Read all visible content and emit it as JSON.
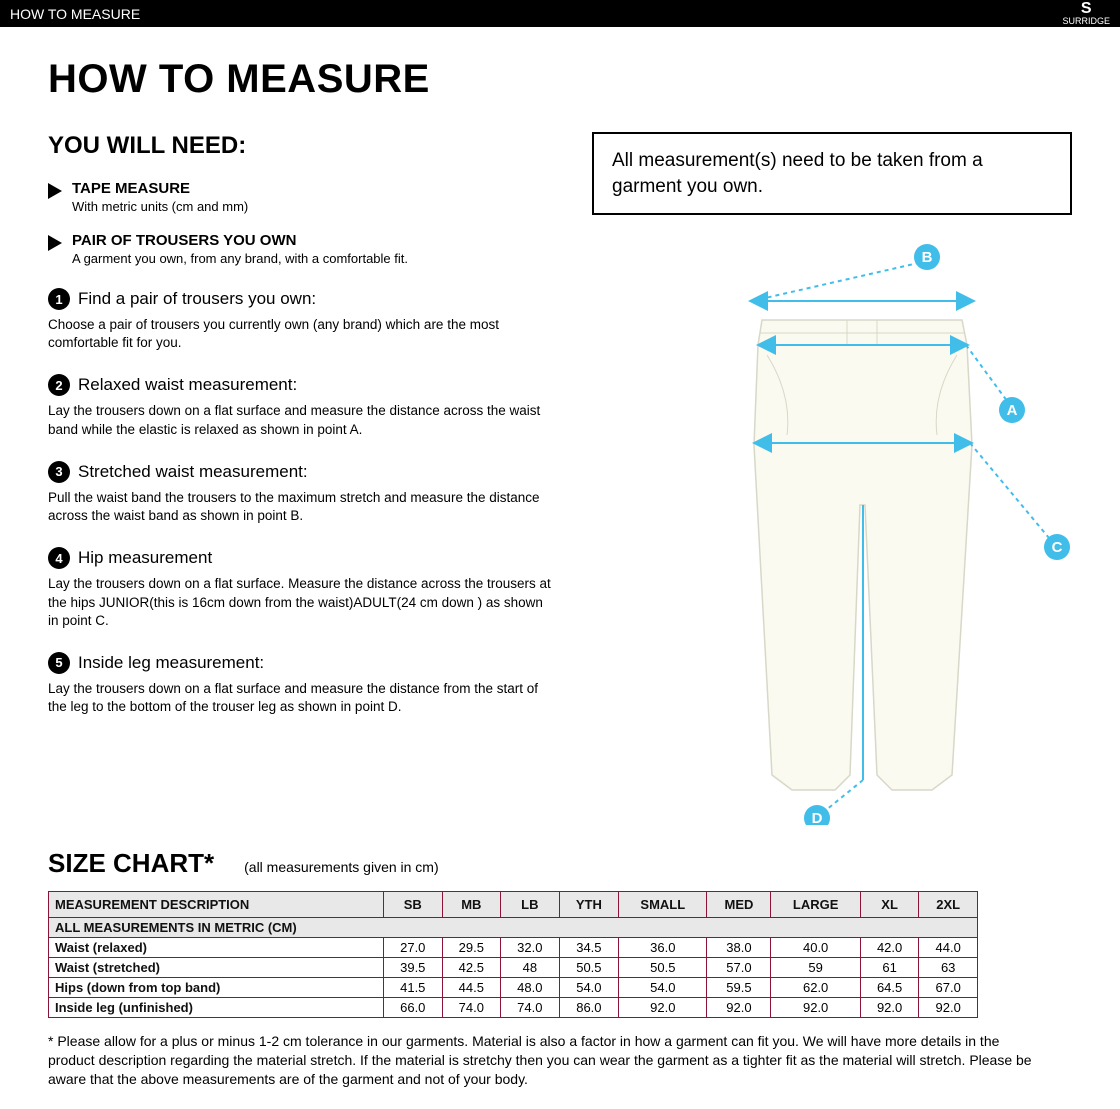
{
  "topbar": {
    "title": "HOW TO MEASURE",
    "brand": "SURRIDGE"
  },
  "mainTitle": "HOW TO MEASURE",
  "youWillNeed": {
    "title": "YOU WILL NEED:",
    "items": [
      {
        "title": "TAPE MEASURE",
        "sub": "With metric units (cm and mm)"
      },
      {
        "title": "PAIR OF TROUSERS YOU OWN",
        "sub": "A garment you own, from any brand, with a comfortable fit."
      }
    ]
  },
  "steps": [
    {
      "num": "1",
      "title": "Find a pair of trousers you own:",
      "body": "Choose a pair of trousers you currently own (any brand) which are the most comfortable fit for you."
    },
    {
      "num": "2",
      "title": "Relaxed waist measurement:",
      "body": "Lay the trousers down on a flat surface and measure the distance across the waist band while the elastic is relaxed as shown in point A."
    },
    {
      "num": "3",
      "title": "Stretched waist measurement:",
      "body": "Pull the waist band the trousers to the maximum stretch and measure the distance across the waist band as shown in point B."
    },
    {
      "num": "4",
      "title": "Hip measurement",
      "body": "Lay the trousers down on a flat surface. Measure the distance across the trousers at the hips JUNIOR(this is 16cm down from the waist)ADULT(24 cm down ) as shown in point C."
    },
    {
      "num": "5",
      "title": "Inside leg measurement:",
      "body": "Lay the trousers down on a flat surface and measure the distance from the start of the leg to the bottom of the trouser leg as shown in point D."
    }
  ],
  "noteBox": "All measurement(s) need to be taken from a garment you own.",
  "diagram": {
    "markerColor": "#40bde8",
    "garmentFill": "#fafaf0",
    "garmentStroke": "#d8d8c8",
    "labels": {
      "A": "A",
      "B": "B",
      "C": "C",
      "D": "D"
    }
  },
  "sizeChart": {
    "title": "SIZE CHART*",
    "subtitle": "(all measurements given in cm)",
    "descHeader": "MEASUREMENT DESCRIPTION",
    "subHeader": "ALL MEASUREMENTS IN METRIC (CM)",
    "columns": [
      "SB",
      "MB",
      "LB",
      "YTH",
      "SMALL",
      "MED",
      "LARGE",
      "XL",
      "2XL"
    ],
    "rows": [
      {
        "desc": "Waist (relaxed)",
        "vals": [
          "27.0",
          "29.5",
          "32.0",
          "34.5",
          "36.0",
          "38.0",
          "40.0",
          "42.0",
          "44.0"
        ]
      },
      {
        "desc": "Waist (stretched)",
        "vals": [
          "39.5",
          "42.5",
          "48",
          "50.5",
          "50.5",
          "57.0",
          "59",
          "61",
          "63"
        ]
      },
      {
        "desc": "Hips (down from top band)",
        "vals": [
          "41.5",
          "44.5",
          "48.0",
          "54.0",
          "54.0",
          "59.5",
          "62.0",
          "64.5",
          "67.0"
        ]
      },
      {
        "desc": "Inside leg (unfinished)",
        "vals": [
          "66.0",
          "74.0",
          "74.0",
          "86.0",
          "92.0",
          "92.0",
          "92.0",
          "92.0",
          "92.0"
        ]
      }
    ],
    "borderColor": "#8a1538",
    "headerBg": "#e8e8e8"
  },
  "footnote": "* Please allow for a plus or minus 1-2 cm tolerance in our garments. Material is also a factor in how a garment can fit you. We will have more details in the product description regarding the material stretch.  If the material is stretchy then you can wear the garment as a tighter fit as the material will stretch.  Please be aware that the above measurements are of the garment and not of your body."
}
